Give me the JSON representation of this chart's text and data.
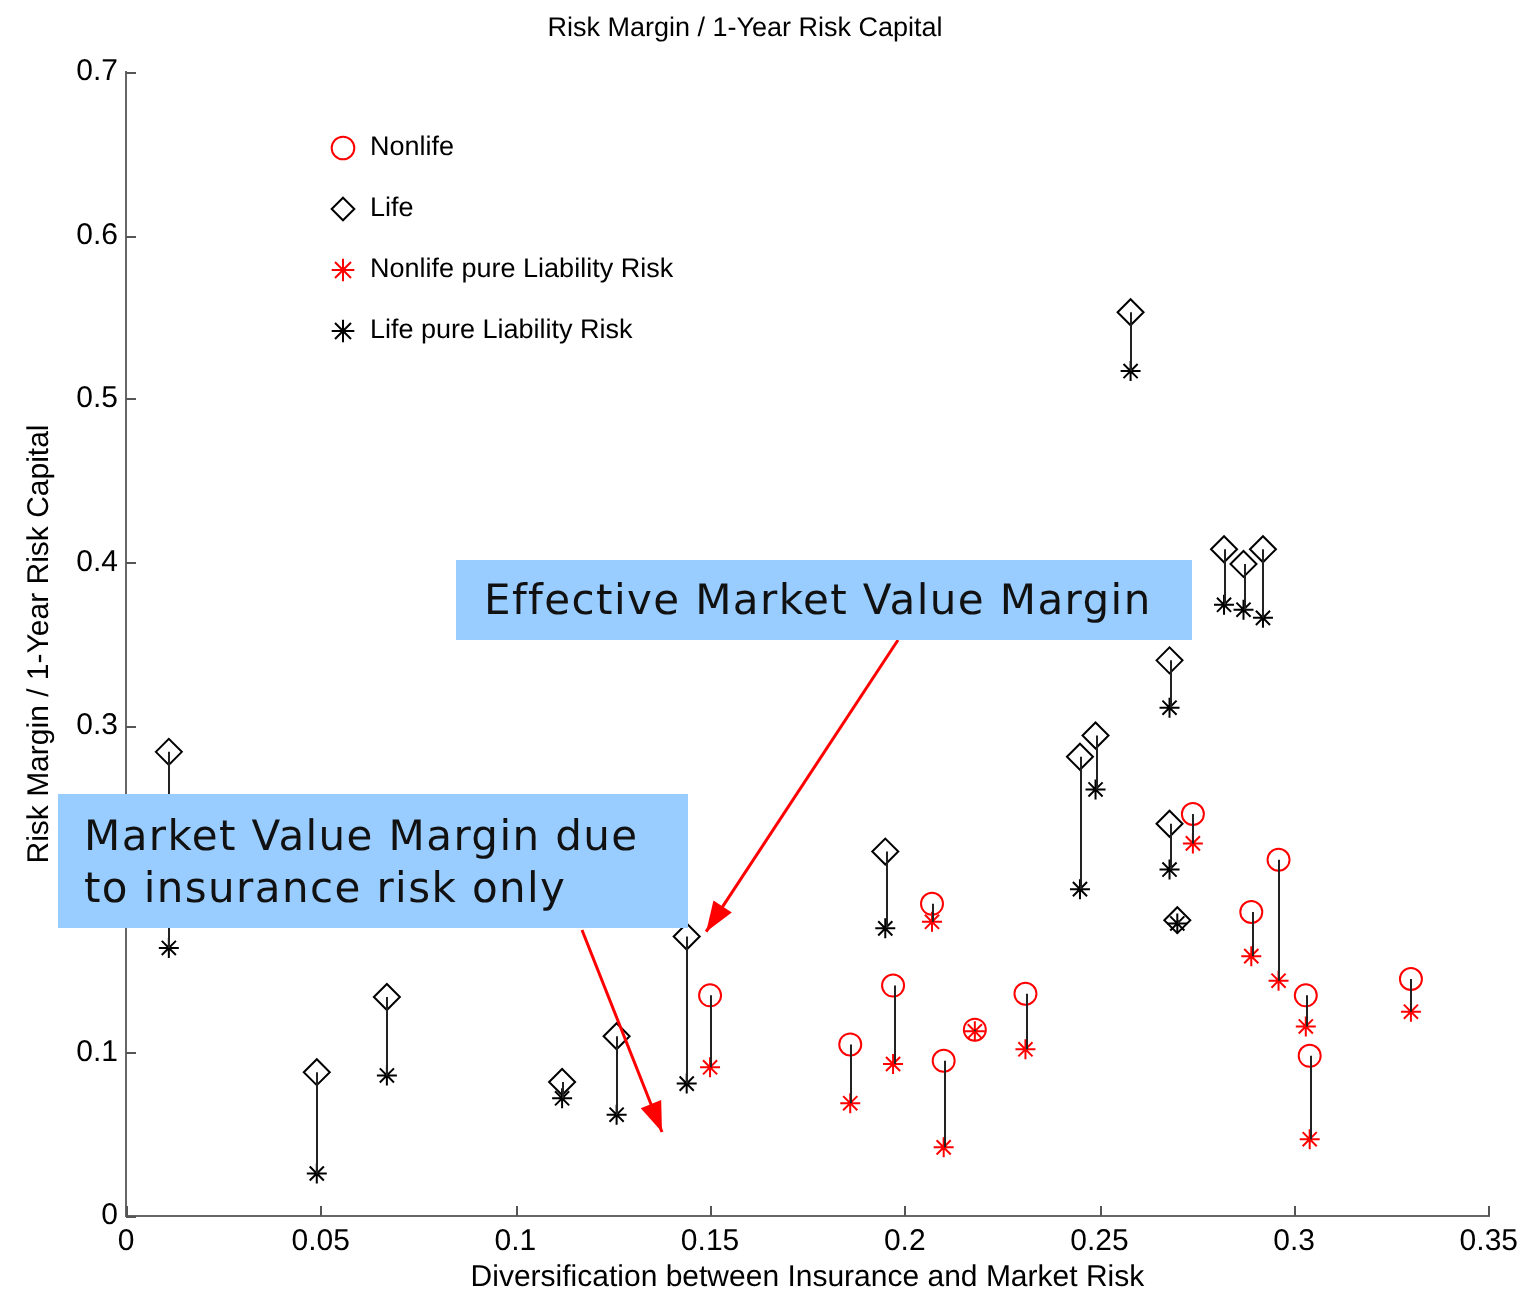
{
  "chart_data": {
    "type": "scatter",
    "title": "Risk Margin / 1-Year Risk Capital",
    "xlabel": "Diversification between Insurance and Market Risk",
    "ylabel": "Risk Margin / 1-Year Risk Capital",
    "xlim": [
      0,
      0.35
    ],
    "xticks": [
      0,
      0.05,
      0.1,
      0.15,
      0.2,
      0.25,
      0.3,
      0.35
    ],
    "ylim": [
      0,
      0.7
    ],
    "yticks": [
      0,
      0.1,
      {
        "value": 0.2,
        "label": null
      },
      0.3,
      0.4,
      0.5,
      0.6,
      0.7
    ],
    "legend": "top left",
    "series": [
      {
        "name": "Nonlife",
        "color": "#ff0000",
        "marker": "circle",
        "x": [
          0.15,
          0.186,
          0.197,
          0.207,
          0.21,
          0.218,
          0.231,
          0.274,
          0.289,
          0.296,
          0.303,
          0.304,
          0.33
        ],
        "values": [
          0.135,
          0.105,
          0.141,
          0.191,
          0.095,
          0.114,
          0.136,
          0.246,
          0.186,
          0.218,
          0.135,
          0.098,
          0.145
        ],
        "errors": [
          [
            0.091,
            0.135
          ],
          [
            0.069,
            0.105
          ],
          [
            0.093,
            0.141
          ],
          [
            0.18,
            0.191
          ],
          [
            0.042,
            0.095
          ],
          [
            0.113,
            0.114
          ],
          [
            0.102,
            0.136
          ],
          [
            0.228,
            0.246
          ],
          [
            0.159,
            0.186
          ],
          [
            0.144,
            0.218
          ],
          [
            0.116,
            0.135
          ],
          [
            0.047,
            0.098
          ],
          [
            0.125,
            0.145
          ]
        ]
      },
      {
        "name": "Life",
        "color": "#000000",
        "marker": "diamond",
        "x": [
          0.011,
          0.049,
          0.067,
          0.112,
          0.126,
          0.144,
          0.195,
          0.245,
          0.249,
          0.258,
          0.268,
          0.268,
          0.27,
          0.282,
          0.287,
          0.292
        ],
        "values": [
          0.284,
          0.088,
          0.134,
          0.082,
          0.11,
          0.171,
          0.223,
          0.281,
          0.294,
          0.553,
          0.34,
          0.24,
          0.181,
          0.408,
          0.399,
          0.408
        ],
        "errors": [
          [
            0.164,
            0.284
          ],
          [
            0.026,
            0.088
          ],
          [
            0.086,
            0.134
          ],
          [
            0.072,
            0.082
          ],
          [
            0.062,
            0.11
          ],
          [
            0.081,
            0.171
          ],
          [
            0.176,
            0.223
          ],
          [
            0.2,
            0.281
          ],
          [
            0.261,
            0.294
          ],
          [
            0.517,
            0.553
          ],
          [
            0.311,
            0.34
          ],
          [
            0.212,
            0.24
          ],
          [
            0.179,
            0.181
          ],
          [
            0.374,
            0.408
          ],
          [
            0.371,
            0.399
          ],
          [
            0.366,
            0.408
          ]
        ]
      },
      {
        "name": "Nonlife pure Liability Risk",
        "color": "#ff0000",
        "marker": "cross",
        "x": [
          0.15,
          0.186,
          0.197,
          0.207,
          0.21,
          0.218,
          0.231,
          0.274,
          0.289,
          0.296,
          0.303,
          0.304,
          0.33
        ],
        "values": [
          0.091,
          0.069,
          0.093,
          0.18,
          0.042,
          0.113,
          0.102,
          0.228,
          0.159,
          0.144,
          0.116,
          0.047,
          0.125
        ]
      },
      {
        "name": "Life pure Liability Risk",
        "color": "#000000",
        "marker": "cross",
        "x": [
          0.011,
          0.049,
          0.067,
          0.112,
          0.126,
          0.144,
          0.195,
          0.245,
          0.249,
          0.258,
          0.268,
          0.268,
          0.27,
          0.282,
          0.287,
          0.292
        ],
        "values": [
          0.164,
          0.026,
          0.086,
          0.072,
          0.062,
          0.081,
          0.176,
          0.2,
          0.261,
          0.517,
          0.311,
          0.212,
          0.179,
          0.374,
          0.371,
          0.366
        ]
      }
    ],
    "annotations": [
      {
        "text": "Effective Market Value Margin",
        "x": 0.149,
        "y": 0.174
      },
      "Market Value Margin due to insurance risk only"
    ]
  }
}
